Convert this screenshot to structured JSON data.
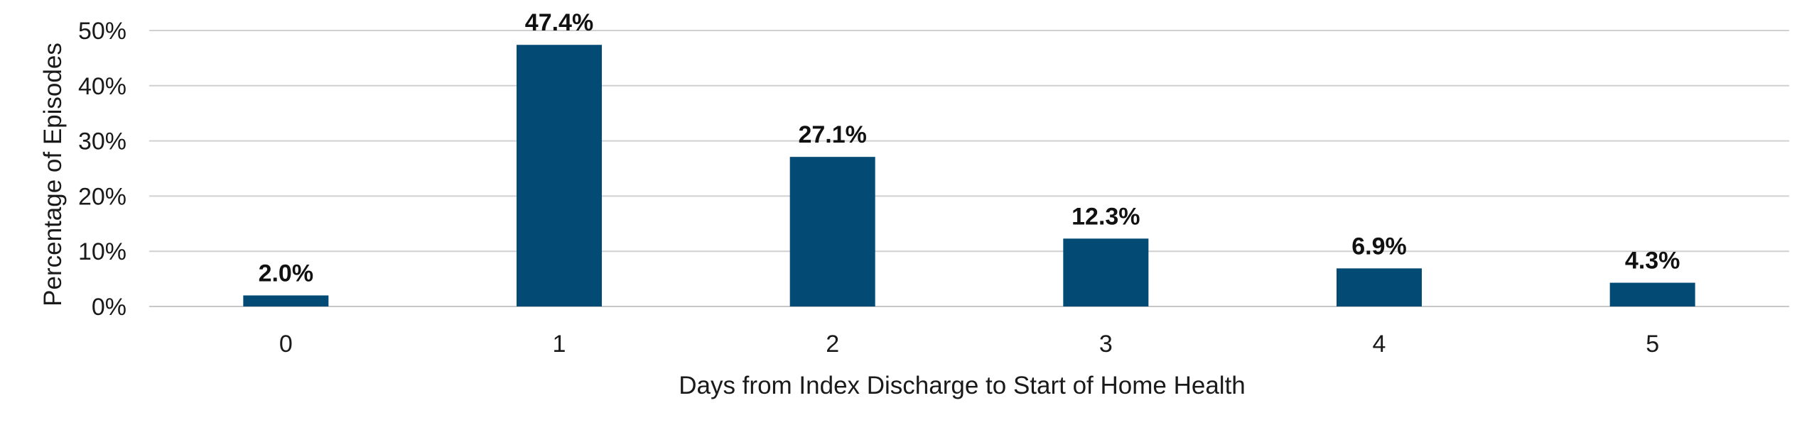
{
  "chart_data": {
    "type": "bar",
    "categories": [
      "0",
      "1",
      "2",
      "3",
      "4",
      "5"
    ],
    "values": [
      2.0,
      47.4,
      27.1,
      12.3,
      6.9,
      4.3
    ],
    "data_labels": [
      "2.0%",
      "47.4%",
      "27.1%",
      "12.3%",
      "6.9%",
      "4.3%"
    ],
    "title": "",
    "xlabel": "Days from Index Discharge to Start of Home Health",
    "ylabel": "Percentage of Episodes",
    "ylim": [
      0,
      50
    ],
    "yticks": [
      0,
      10,
      20,
      30,
      40,
      50
    ],
    "ytick_labels": [
      "0%",
      "10%",
      "20%",
      "30%",
      "40%",
      "50%"
    ],
    "grid": true,
    "legend": "none",
    "bar_color": "#034a74"
  }
}
